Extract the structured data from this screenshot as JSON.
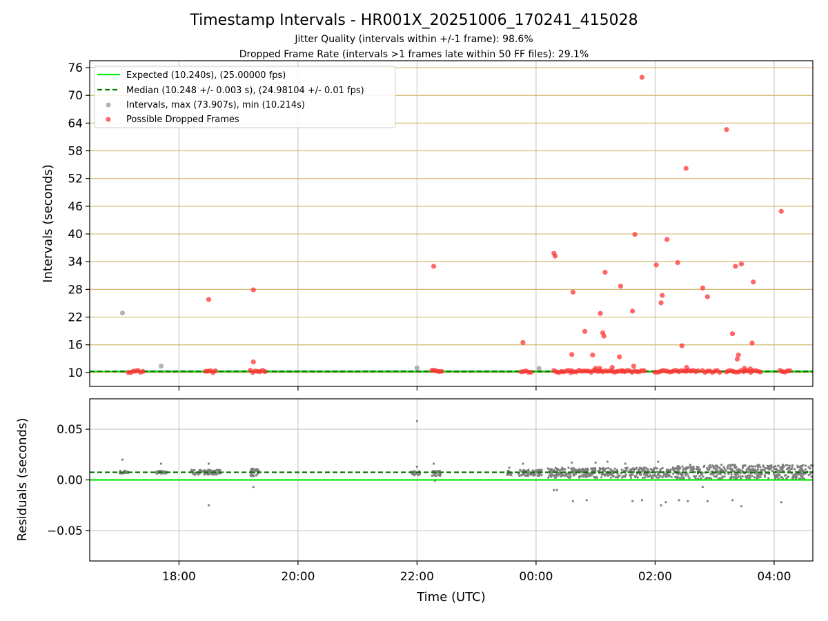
{
  "chart_data": {
    "type": "scatter",
    "title": "Timestamp Intervals - HR001X_20251006_170241_415028",
    "subtitle_jitter": "Jitter Quality (intervals within +/-1 frame): 98.6%",
    "subtitle_dropped": "Dropped Frame Rate (intervals >1 frames late within 50 FF files): 29.1%",
    "xlabel": "Time (UTC)",
    "x_unit": "hours since 16:00 UTC",
    "x_ticks": [
      {
        "label": "18:00",
        "value": 2
      },
      {
        "label": "20:00",
        "value": 4
      },
      {
        "label": "22:00",
        "value": 6
      },
      {
        "label": "00:00",
        "value": 8
      },
      {
        "label": "02:00",
        "value": 10
      },
      {
        "label": "04:00",
        "value": 12
      }
    ],
    "xlim": [
      0.5,
      12.65
    ],
    "top": {
      "ylabel": "Intervals (seconds)",
      "ylim": [
        7,
        77.5
      ],
      "y_ticks": [
        10,
        16,
        22,
        28,
        34,
        40,
        46,
        52,
        58,
        64,
        70,
        76
      ],
      "expected": 10.24,
      "median": 10.248,
      "band": [
        10.05,
        10.45
      ],
      "legend": {
        "expected": "Expected (10.240s), (25.00000 fps)",
        "median": "Median (10.248 +/- 0.003 s), (24.98104 +/- 0.01 fps)",
        "intervals": "Intervals, max (73.907s), min (10.214s)",
        "dropped": "Possible Dropped Frames"
      },
      "colors": {
        "expected": "#00ee00",
        "median": "#007700",
        "intervals": "#999999",
        "dropped": "#ff3333",
        "band": "#555555",
        "grid_y": "#d4b870"
      },
      "gray_points": [
        [
          1.05,
          22.9
        ],
        [
          1.7,
          11.4
        ],
        [
          6.0,
          11.0
        ],
        [
          8.05,
          10.9
        ]
      ],
      "red_points": [
        [
          2.5,
          25.8
        ],
        [
          3.25,
          27.9
        ],
        [
          3.25,
          12.3
        ],
        [
          6.28,
          33.0
        ],
        [
          7.78,
          16.5
        ],
        [
          8.3,
          35.8
        ],
        [
          8.32,
          35.2
        ],
        [
          8.6,
          13.9
        ],
        [
          8.62,
          27.4
        ],
        [
          8.82,
          18.9
        ],
        [
          8.95,
          13.8
        ],
        [
          9.0,
          10.9
        ],
        [
          9.07,
          10.9
        ],
        [
          9.08,
          22.8
        ],
        [
          9.12,
          18.6
        ],
        [
          9.14,
          17.9
        ],
        [
          9.16,
          31.7
        ],
        [
          9.28,
          11.1
        ],
        [
          9.4,
          13.4
        ],
        [
          9.42,
          28.7
        ],
        [
          9.62,
          23.3
        ],
        [
          9.64,
          11.4
        ],
        [
          9.66,
          39.9
        ],
        [
          9.78,
          73.9
        ],
        [
          10.02,
          33.3
        ],
        [
          10.1,
          25.1
        ],
        [
          10.12,
          26.7
        ],
        [
          10.2,
          38.8
        ],
        [
          10.38,
          33.8
        ],
        [
          10.45,
          15.8
        ],
        [
          10.52,
          54.2
        ],
        [
          10.53,
          11.1
        ],
        [
          10.8,
          28.3
        ],
        [
          10.88,
          26.4
        ],
        [
          11.2,
          62.6
        ],
        [
          11.3,
          18.4
        ],
        [
          11.35,
          33.0
        ],
        [
          11.38,
          12.9
        ],
        [
          11.4,
          13.8
        ],
        [
          11.45,
          33.5
        ],
        [
          11.5,
          10.9
        ],
        [
          11.6,
          10.8
        ],
        [
          11.63,
          16.4
        ],
        [
          11.65,
          29.6
        ],
        [
          12.12,
          44.9
        ]
      ],
      "red_clusters": [
        [
          1.15,
          1.4
        ],
        [
          2.45,
          2.65
        ],
        [
          3.2,
          3.45
        ],
        [
          6.25,
          6.45
        ],
        [
          7.75,
          7.95
        ],
        [
          8.3,
          8.6
        ],
        [
          8.6,
          9.0
        ],
        [
          9.0,
          9.45
        ],
        [
          9.45,
          9.85
        ],
        [
          10.0,
          10.4
        ],
        [
          10.4,
          10.75
        ],
        [
          10.8,
          11.1
        ],
        [
          11.2,
          11.8
        ],
        [
          12.1,
          12.3
        ]
      ]
    },
    "bottom": {
      "ylabel": "Residuals (seconds)",
      "ylim": [
        -0.08,
        0.08
      ],
      "y_ticks": [
        {
          "label": "0.05",
          "value": 0.05
        },
        {
          "label": "0.00",
          "value": 0.0
        },
        {
          "label": "−0.05",
          "value": -0.05
        }
      ],
      "expected": 0.0,
      "median": 0.0075,
      "colors": {
        "points": "#808080",
        "expected": "#00ee00",
        "median": "#007700",
        "grid": "#c8c8c8"
      },
      "outliers": [
        [
          1.05,
          0.02
        ],
        [
          1.7,
          0.016
        ],
        [
          2.5,
          0.016
        ],
        [
          2.5,
          -0.025
        ],
        [
          3.25,
          -0.007
        ],
        [
          3.25,
          0.011
        ],
        [
          6.0,
          0.058
        ],
        [
          6.0,
          0.013
        ],
        [
          6.28,
          0.016
        ],
        [
          6.3,
          -0.001
        ],
        [
          7.55,
          0.012
        ],
        [
          7.78,
          0.016
        ],
        [
          8.3,
          -0.01
        ],
        [
          8.35,
          -0.01
        ],
        [
          8.6,
          0.017
        ],
        [
          8.62,
          -0.021
        ],
        [
          8.85,
          -0.02
        ],
        [
          9.0,
          0.017
        ],
        [
          9.2,
          0.018
        ],
        [
          9.5,
          0.016
        ],
        [
          9.62,
          -0.021
        ],
        [
          9.78,
          -0.02
        ],
        [
          10.05,
          0.018
        ],
        [
          10.1,
          -0.025
        ],
        [
          10.18,
          -0.022
        ],
        [
          10.4,
          -0.02
        ],
        [
          10.55,
          -0.021
        ],
        [
          10.8,
          -0.007
        ],
        [
          10.88,
          -0.021
        ],
        [
          11.3,
          -0.02
        ],
        [
          11.45,
          -0.026
        ],
        [
          12.12,
          -0.022
        ]
      ],
      "clusters": [
        [
          1.0,
          1.15,
          0.006,
          0.009
        ],
        [
          1.6,
          1.8,
          0.006,
          0.009
        ],
        [
          2.2,
          2.7,
          0.005,
          0.01
        ],
        [
          3.2,
          3.35,
          0.003,
          0.011
        ],
        [
          5.9,
          6.05,
          0.004,
          0.009
        ],
        [
          6.25,
          6.4,
          0.004,
          0.009
        ],
        [
          7.5,
          7.6,
          0.004,
          0.009
        ],
        [
          7.7,
          8.1,
          0.004,
          0.01
        ],
        [
          8.2,
          10.3,
          0.002,
          0.012
        ],
        [
          10.3,
          12.65,
          0.001,
          0.015
        ]
      ]
    }
  }
}
